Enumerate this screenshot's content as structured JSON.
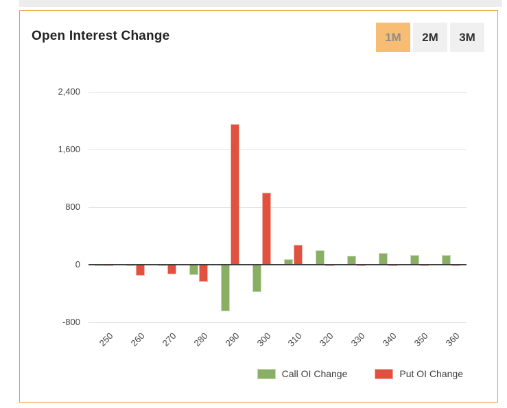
{
  "header": {
    "title": "Open Interest Change"
  },
  "period_buttons": [
    {
      "label": "1M",
      "active": true
    },
    {
      "label": "2M",
      "active": false
    },
    {
      "label": "3M",
      "active": false
    }
  ],
  "chart_data": {
    "type": "bar",
    "title": "Open Interest Change",
    "xlabel": "",
    "ylabel": "",
    "categories": [
      "250",
      "260",
      "270",
      "280",
      "290",
      "300",
      "310",
      "320",
      "330",
      "340",
      "350",
      "360"
    ],
    "series": [
      {
        "name": "Call OI Change",
        "color": "#8aae63",
        "values": [
          -5,
          -10,
          -10,
          -140,
          -650,
          -380,
          75,
          200,
          125,
          160,
          130,
          135
        ]
      },
      {
        "name": "Put OI Change",
        "color": "#e0513f",
        "values": [
          -20,
          -150,
          -130,
          -240,
          1950,
          1000,
          280,
          -15,
          -20,
          -10,
          -15,
          -15
        ]
      }
    ],
    "yticks": [
      2400,
      1600,
      800,
      0,
      -800
    ],
    "ytick_labels": [
      "2,400",
      "1,600",
      "800",
      "0",
      "-800"
    ],
    "ylim": [
      -800,
      2400
    ],
    "grid": true,
    "legend_position": "bottom-right"
  },
  "colors": {
    "card_border": "#ee9a2d",
    "active_button_bg": "#f7bd73",
    "inactive_button_bg": "#f0f0f0",
    "call_green": "#8aae63",
    "put_red": "#e0513f",
    "zero_line": "#3f3f3f",
    "gridline": "#e2e2e2",
    "axis_text": "#444444"
  }
}
